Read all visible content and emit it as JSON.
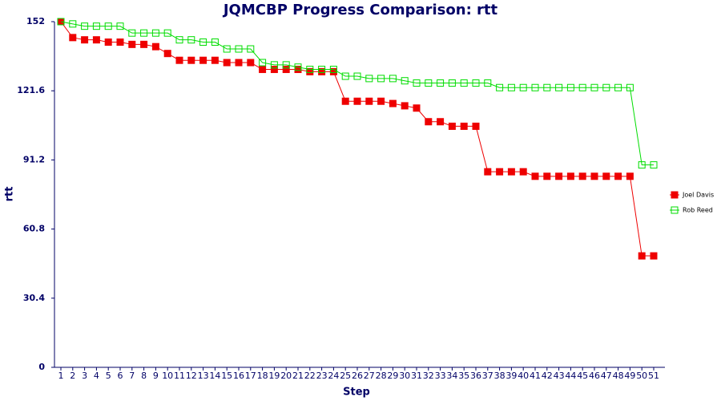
{
  "chart_data": {
    "type": "line",
    "title": "JQMCBP Progress Comparison: rtt",
    "xlabel": "Step",
    "ylabel": "rtt",
    "categories": [
      "1",
      "2",
      "3",
      "4",
      "5",
      "6",
      "7",
      "8",
      "9",
      "10",
      "11",
      "12",
      "13",
      "14",
      "15",
      "16",
      "17",
      "18",
      "19",
      "20",
      "21",
      "22",
      "23",
      "24",
      "25",
      "26",
      "27",
      "28",
      "29",
      "30",
      "31",
      "32",
      "33",
      "34",
      "35",
      "36",
      "37",
      "38",
      "39",
      "40",
      "41",
      "42",
      "43",
      "44",
      "45",
      "46",
      "47",
      "48",
      "49",
      "50",
      "51"
    ],
    "series": [
      {
        "name": "Joel Davis",
        "color": "#ee0000",
        "marker": "filled",
        "values": [
          152,
          145,
          144,
          144,
          143,
          143,
          142,
          142,
          141,
          138,
          135,
          135,
          135,
          135,
          134,
          134,
          134,
          131,
          131,
          131,
          131,
          130,
          130,
          130,
          117,
          117,
          117,
          117,
          116,
          115,
          114,
          108,
          108,
          106,
          106,
          106,
          86,
          86,
          86,
          86,
          84,
          84,
          84,
          84,
          84,
          84,
          84,
          84,
          84,
          49,
          49
        ]
      },
      {
        "name": "Rob Reed",
        "color": "#00dd00",
        "marker": "hollow",
        "values": [
          152,
          151,
          150,
          150,
          150,
          150,
          147,
          147,
          147,
          147,
          144,
          144,
          143,
          143,
          140,
          140,
          140,
          134,
          133,
          133,
          132,
          131,
          131,
          131,
          128,
          128,
          127,
          127,
          127,
          126,
          125,
          125,
          125,
          125,
          125,
          125,
          125,
          123,
          123,
          123,
          123,
          123,
          123,
          123,
          123,
          123,
          123,
          123,
          123,
          89,
          89
        ]
      }
    ],
    "ylim": [
      0,
      152
    ],
    "yticks": [
      0,
      30.4,
      60.8,
      91.2,
      121.6,
      152
    ],
    "grid": false,
    "legend": "right"
  }
}
